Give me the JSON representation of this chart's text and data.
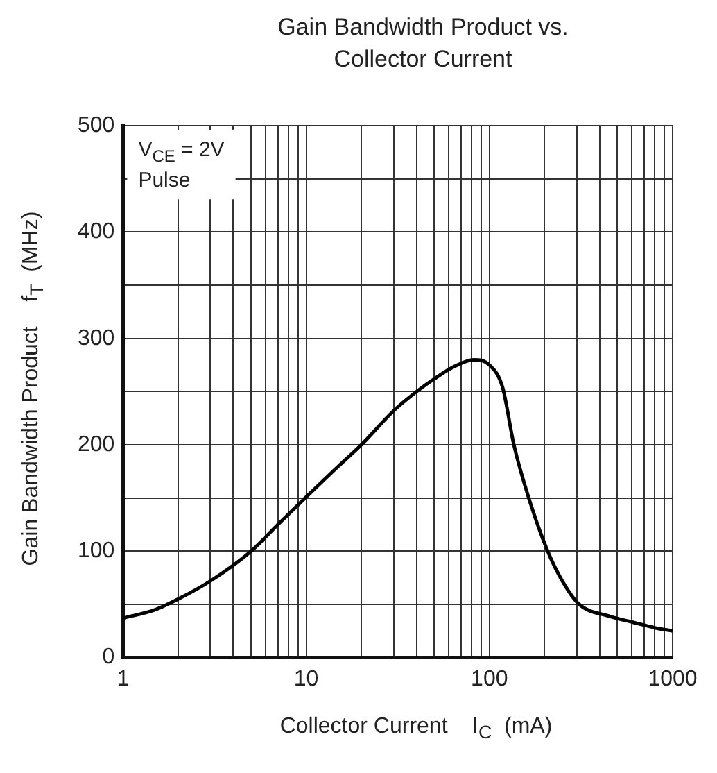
{
  "chart_data": {
    "type": "line",
    "title": "Gain Bandwidth Product vs. Collector Current",
    "xlabel": "Collector Current    I$_{C}$  (mA)",
    "ylabel": "Gain Bandwidth Product    f$_{T}$  (MHz)",
    "annotations": [
      "V$_{CE}$ = 2V",
      "Pulse"
    ],
    "log": "x",
    "grid": true,
    "legend": false,
    "marker": "none",
    "line_style": "solid",
    "xlim": [
      1,
      1000
    ],
    "ylim": [
      0,
      500
    ],
    "xticks": [
      1,
      {
        "value": 2,
        "label": null
      },
      {
        "value": 3,
        "label": null
      },
      {
        "value": 4,
        "label": null
      },
      {
        "value": 5,
        "label": null
      },
      {
        "value": 6,
        "label": null
      },
      {
        "value": 7,
        "label": null
      },
      {
        "value": 8,
        "label": null
      },
      {
        "value": 9,
        "label": null
      },
      10,
      {
        "value": 20,
        "label": null
      },
      {
        "value": 30,
        "label": null
      },
      {
        "value": 40,
        "label": null
      },
      {
        "value": 50,
        "label": null
      },
      {
        "value": 60,
        "label": null
      },
      {
        "value": 70,
        "label": null
      },
      {
        "value": 80,
        "label": null
      },
      {
        "value": 90,
        "label": null
      },
      100,
      {
        "value": 200,
        "label": null
      },
      {
        "value": 300,
        "label": null
      },
      {
        "value": 400,
        "label": null
      },
      {
        "value": 500,
        "label": null
      },
      {
        "value": 600,
        "label": null
      },
      {
        "value": 700,
        "label": null
      },
      {
        "value": 800,
        "label": null
      },
      {
        "value": 900,
        "label": null
      },
      1000
    ],
    "yticks": [
      0,
      {
        "value": 50,
        "label": null
      },
      100,
      {
        "value": 150,
        "label": null
      },
      200,
      {
        "value": 250,
        "label": null
      },
      300,
      {
        "value": 350,
        "label": null
      },
      400,
      {
        "value": 450,
        "label": null
      },
      500
    ],
    "series": [
      {
        "color": "#000000",
        "x": [
          1,
          1.5,
          2,
          3,
          5,
          7,
          10,
          15,
          20,
          30,
          40,
          50,
          65,
          82,
          100,
          118,
          136,
          164,
          208,
          250,
          309,
          450,
          612,
          800,
          1000
        ],
        "values": [
          37,
          45,
          55,
          72,
          100,
          125,
          151,
          180,
          200,
          232,
          250,
          262,
          274,
          280,
          275,
          254,
          200,
          150,
          100,
          72,
          50,
          39,
          33,
          28,
          25
        ]
      }
    ]
  }
}
